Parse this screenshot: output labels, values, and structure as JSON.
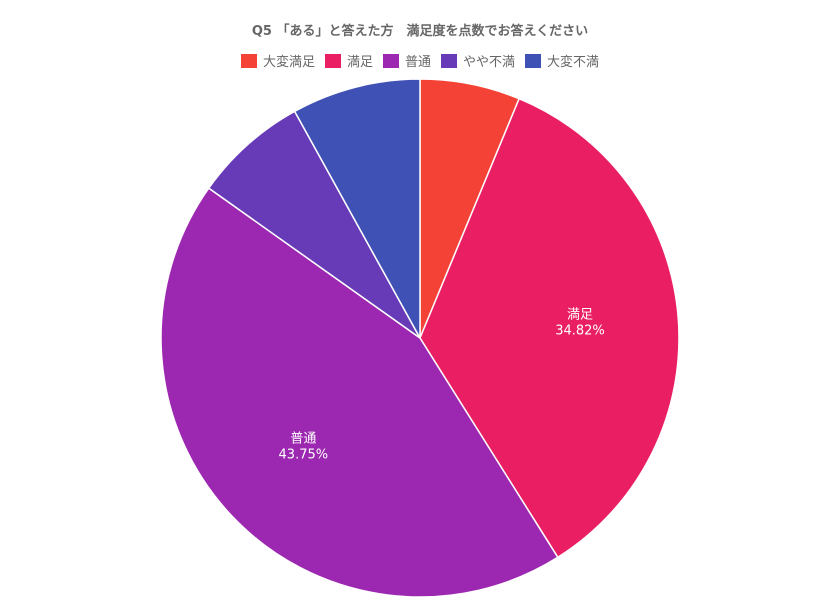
{
  "chart_data": {
    "type": "pie",
    "title": "Q5 「ある」と答えた方　満足度を点数でお答えください",
    "legend_position": "top",
    "categories": [
      "大変満足",
      "満足",
      "普通",
      "やや不満",
      "大変不満"
    ],
    "values": [
      6.25,
      34.82,
      43.75,
      7.14,
      8.04
    ],
    "value_labels": [
      "",
      "34.82%",
      "43.75%",
      "",
      ""
    ],
    "colors": [
      "#f44336",
      "#e91e63",
      "#9c27b0",
      "#673ab7",
      "#3f51b5"
    ]
  }
}
